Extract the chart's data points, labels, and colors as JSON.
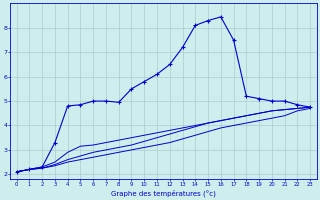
{
  "xlabel": "Graphe des températures (°c)",
  "background_color": "#cceeed",
  "grid_color": "#aacccc",
  "line_color": "#0000cc",
  "xlim": [
    -0.5,
    23.5
  ],
  "ylim": [
    1.8,
    9.0
  ],
  "yticks": [
    2,
    3,
    4,
    5,
    6,
    7,
    8
  ],
  "xticks": [
    0,
    1,
    2,
    3,
    4,
    5,
    6,
    7,
    8,
    9,
    10,
    11,
    12,
    13,
    14,
    15,
    16,
    17,
    18,
    19,
    20,
    21,
    22,
    23
  ],
  "line1_x": [
    0,
    1,
    2,
    3,
    4,
    5,
    6,
    7,
    8,
    9,
    10,
    11,
    12,
    13,
    14,
    15,
    16,
    17,
    18,
    19,
    20,
    21,
    22,
    23
  ],
  "line1_y": [
    2.1,
    2.2,
    2.25,
    2.35,
    2.5,
    2.6,
    2.7,
    2.8,
    2.9,
    3.0,
    3.1,
    3.2,
    3.3,
    3.45,
    3.6,
    3.75,
    3.9,
    4.0,
    4.1,
    4.2,
    4.3,
    4.4,
    4.6,
    4.7
  ],
  "line2_x": [
    0,
    1,
    2,
    3,
    4,
    5,
    6,
    7,
    8,
    9,
    10,
    11,
    12,
    13,
    14,
    15,
    16,
    17,
    18,
    19,
    20,
    21,
    22,
    23
  ],
  "line2_y": [
    2.1,
    2.2,
    2.25,
    2.4,
    2.6,
    2.75,
    2.9,
    3.0,
    3.1,
    3.2,
    3.35,
    3.5,
    3.65,
    3.8,
    3.95,
    4.1,
    4.2,
    4.3,
    4.4,
    4.5,
    4.6,
    4.65,
    4.7,
    4.75
  ],
  "line3_x": [
    0,
    1,
    2,
    3,
    4,
    5,
    6,
    7,
    8,
    9,
    10,
    11,
    12,
    13,
    14,
    15,
    16,
    17,
    18,
    19,
    20,
    21,
    22,
    23
  ],
  "line3_y": [
    2.1,
    2.2,
    2.3,
    2.5,
    2.9,
    3.15,
    3.2,
    3.3,
    3.4,
    3.5,
    3.6,
    3.7,
    3.8,
    3.9,
    4.0,
    4.1,
    4.2,
    4.3,
    4.4,
    4.5,
    4.6,
    4.65,
    4.7,
    4.75
  ],
  "line4_x": [
    0,
    1,
    2,
    3,
    4,
    5,
    6,
    7,
    8,
    9,
    10,
    11,
    12,
    13,
    14,
    15,
    16,
    17,
    18,
    19,
    20,
    21,
    22,
    23
  ],
  "line4_y": [
    2.1,
    2.2,
    2.3,
    3.3,
    4.8,
    4.85,
    5.0,
    5.0,
    4.95,
    5.5,
    5.8,
    6.1,
    6.5,
    7.2,
    8.1,
    8.3,
    8.45,
    7.5,
    5.2,
    5.1,
    5.0,
    5.0,
    4.85,
    4.75
  ]
}
